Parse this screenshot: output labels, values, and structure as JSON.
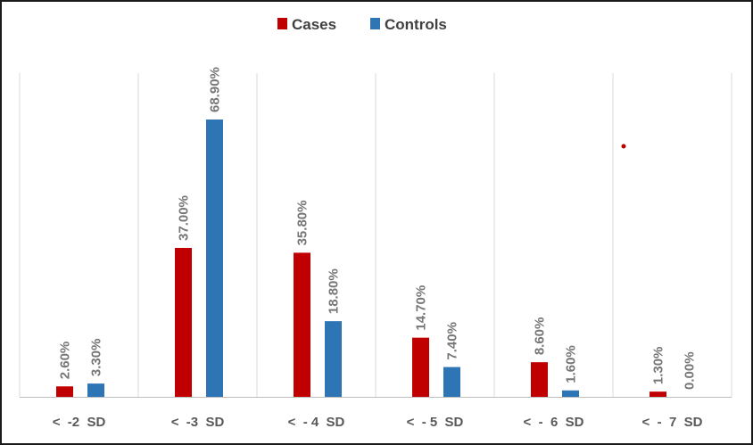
{
  "chart_data": {
    "type": "bar",
    "title": "",
    "xlabel": "",
    "ylabel": "",
    "ylim": [
      0,
      75
    ],
    "grid": "vertical category separators",
    "legend_position": "top",
    "categories": [
      "<  -2  SD",
      "<  -3  SD",
      "<  - 4  SD",
      "<  - 5  SD",
      "<  -  6  SD",
      "<  -  7  SD"
    ],
    "series": [
      {
        "name": "Cases",
        "color": "#C00000",
        "values": [
          2.6,
          37.0,
          35.8,
          14.7,
          8.6,
          1.3
        ],
        "labels": [
          "2.60%",
          "37.00%",
          "35.80%",
          "14.70%",
          "8.60%",
          "1.30%"
        ]
      },
      {
        "name": "Controls",
        "color": "#2E75B6",
        "values": [
          3.3,
          68.9,
          18.8,
          7.4,
          1.6,
          0.0
        ],
        "labels": [
          "3.30%",
          "68.90%",
          "18.80%",
          "7.40%",
          "1.60%",
          "0.00%"
        ]
      }
    ]
  }
}
